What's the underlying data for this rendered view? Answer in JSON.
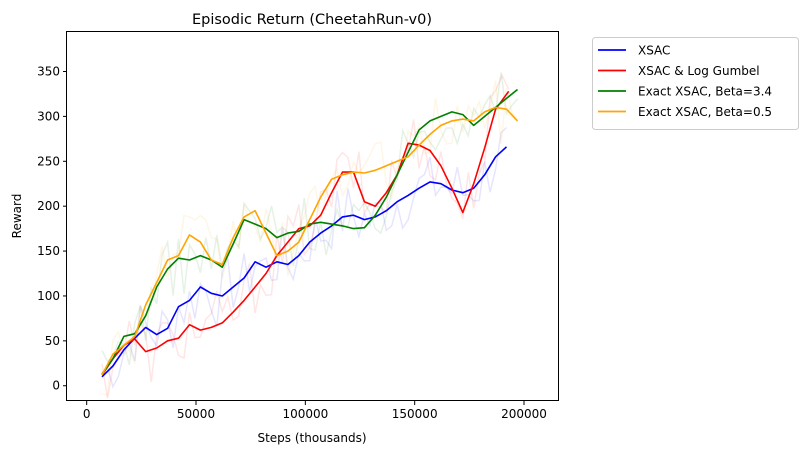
{
  "chart_data": {
    "type": "line",
    "title": "Episodic Return (CheetahRun-v0)",
    "xlabel": "Steps (thousands)",
    "ylabel": "Reward",
    "xlim": [
      -9000,
      216000
    ],
    "ylim": [
      -17,
      394
    ],
    "xticks": [
      0,
      50000,
      100000,
      150000,
      200000
    ],
    "yticks": [
      0,
      50,
      100,
      150,
      200,
      250,
      300,
      350
    ],
    "grid": false,
    "legend_position": "outside-right-top",
    "series": [
      {
        "name": "XSAC",
        "color": "#0000ff",
        "x": [
          7000,
          12000,
          17000,
          22000,
          27000,
          32000,
          37000,
          42000,
          47000,
          52000,
          57000,
          62000,
          67000,
          72000,
          77000,
          82000,
          87000,
          92000,
          97000,
          102000,
          107000,
          112000,
          117000,
          122000,
          127000,
          132000,
          137000,
          142000,
          147000,
          152000,
          157000,
          162000,
          167000,
          172000,
          177000,
          182000,
          187000,
          192000
        ],
        "y": [
          10,
          22,
          40,
          53,
          65,
          57,
          64,
          88,
          95,
          110,
          103,
          100,
          110,
          120,
          138,
          132,
          138,
          135,
          145,
          160,
          170,
          178,
          188,
          190,
          185,
          188,
          195,
          205,
          212,
          220,
          227,
          225,
          218,
          215,
          220,
          235,
          255,
          266
        ]
      },
      {
        "name": "XSAC & Log Gumbel",
        "color": "#ff0000",
        "x": [
          7000,
          12000,
          17000,
          22000,
          27000,
          32000,
          37000,
          42000,
          47000,
          52000,
          57000,
          62000,
          67000,
          72000,
          77000,
          82000,
          87000,
          92000,
          97000,
          102000,
          107000,
          112000,
          117000,
          122000,
          127000,
          132000,
          137000,
          142000,
          147000,
          152000,
          157000,
          162000,
          167000,
          172000,
          177000,
          182000,
          187000,
          193000
        ],
        "y": [
          12,
          30,
          45,
          52,
          38,
          42,
          50,
          53,
          68,
          62,
          65,
          70,
          82,
          95,
          110,
          125,
          145,
          160,
          175,
          178,
          190,
          215,
          238,
          238,
          205,
          200,
          215,
          235,
          270,
          268,
          262,
          245,
          220,
          193,
          225,
          265,
          308,
          328
        ]
      },
      {
        "name": "Exact XSAC, Beta=3.4",
        "color": "#008000",
        "x": [
          7000,
          12000,
          17000,
          22000,
          27000,
          32000,
          37000,
          42000,
          47000,
          52000,
          57000,
          62000,
          67000,
          72000,
          77000,
          82000,
          87000,
          92000,
          97000,
          102000,
          107000,
          112000,
          117000,
          122000,
          127000,
          132000,
          137000,
          142000,
          147000,
          152000,
          157000,
          162000,
          167000,
          172000,
          177000,
          182000,
          187000,
          192000,
          197000
        ],
        "y": [
          13,
          30,
          55,
          58,
          78,
          110,
          130,
          142,
          140,
          145,
          140,
          132,
          158,
          185,
          180,
          175,
          165,
          170,
          172,
          180,
          182,
          180,
          178,
          175,
          176,
          190,
          210,
          235,
          260,
          285,
          295,
          300,
          305,
          302,
          290,
          300,
          310,
          320,
          330
        ]
      },
      {
        "name": "Exact XSAC, Beta=0.5",
        "color": "#ffa500",
        "x": [
          7000,
          12000,
          17000,
          22000,
          27000,
          32000,
          37000,
          42000,
          47000,
          52000,
          57000,
          62000,
          67000,
          72000,
          77000,
          82000,
          87000,
          92000,
          97000,
          102000,
          107000,
          112000,
          117000,
          122000,
          127000,
          132000,
          137000,
          142000,
          147000,
          152000,
          157000,
          162000,
          167000,
          172000,
          177000,
          182000,
          187000,
          192000,
          197000
        ],
        "y": [
          12,
          35,
          45,
          55,
          90,
          115,
          140,
          145,
          168,
          160,
          140,
          135,
          165,
          188,
          195,
          170,
          145,
          150,
          160,
          185,
          210,
          230,
          235,
          238,
          237,
          240,
          245,
          250,
          255,
          268,
          280,
          290,
          295,
          297,
          295,
          305,
          310,
          308,
          295
        ]
      }
    ]
  }
}
